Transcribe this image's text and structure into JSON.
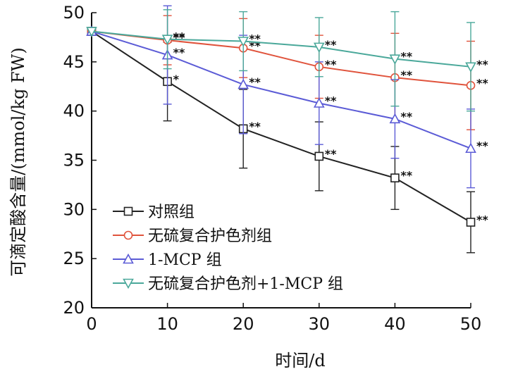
{
  "chart_data": {
    "type": "line",
    "title": "",
    "xlabel": "时间/d",
    "ylabel": "可滴定酸含量/(mmol/kg FW)",
    "x": [
      0,
      10,
      20,
      30,
      40,
      50
    ],
    "xlim": [
      0,
      50
    ],
    "ylim": [
      20,
      50
    ],
    "xticks": [
      0,
      10,
      20,
      30,
      40,
      50
    ],
    "yticks": [
      20,
      25,
      30,
      35,
      40,
      45,
      50
    ],
    "grid": false,
    "legend_position": "bottom-left",
    "series": [
      {
        "name": "对照组",
        "color": "#222222",
        "marker": "square",
        "values": [
          48.1,
          43.0,
          38.2,
          35.4,
          33.2,
          28.7
        ],
        "errors": [
          0,
          4.0,
          4.0,
          3.5,
          3.2,
          3.1
        ],
        "significance": [
          "",
          "*",
          "**",
          "**",
          "**",
          "**"
        ]
      },
      {
        "name": "无硫复合护色剂组",
        "color": "#e0533c",
        "marker": "circle",
        "values": [
          48.1,
          47.2,
          46.4,
          44.5,
          43.4,
          42.6
        ],
        "errors": [
          0,
          2.5,
          3.0,
          3.2,
          4.5,
          4.5
        ],
        "significance": [
          "",
          "**",
          "**",
          "**",
          "**",
          "**"
        ]
      },
      {
        "name": "1-MCP 组",
        "color": "#5b5bd6",
        "marker": "triangle-up",
        "values": [
          48.1,
          45.7,
          42.7,
          40.8,
          39.2,
          36.2
        ],
        "errors": [
          0,
          5.0,
          5.0,
          4.2,
          4.0,
          4.0
        ],
        "significance": [
          "",
          "**",
          "**",
          "**",
          "**",
          "**"
        ]
      },
      {
        "name": "无硫复合护色剂+1-MCP 组",
        "color": "#4aa89a",
        "marker": "triangle-down",
        "values": [
          48.1,
          47.3,
          47.1,
          46.5,
          45.3,
          44.5
        ],
        "errors": [
          0,
          3.0,
          3.0,
          3.0,
          4.8,
          4.5
        ],
        "significance": [
          "",
          "**",
          "**",
          "**",
          "**",
          "**"
        ]
      }
    ]
  }
}
